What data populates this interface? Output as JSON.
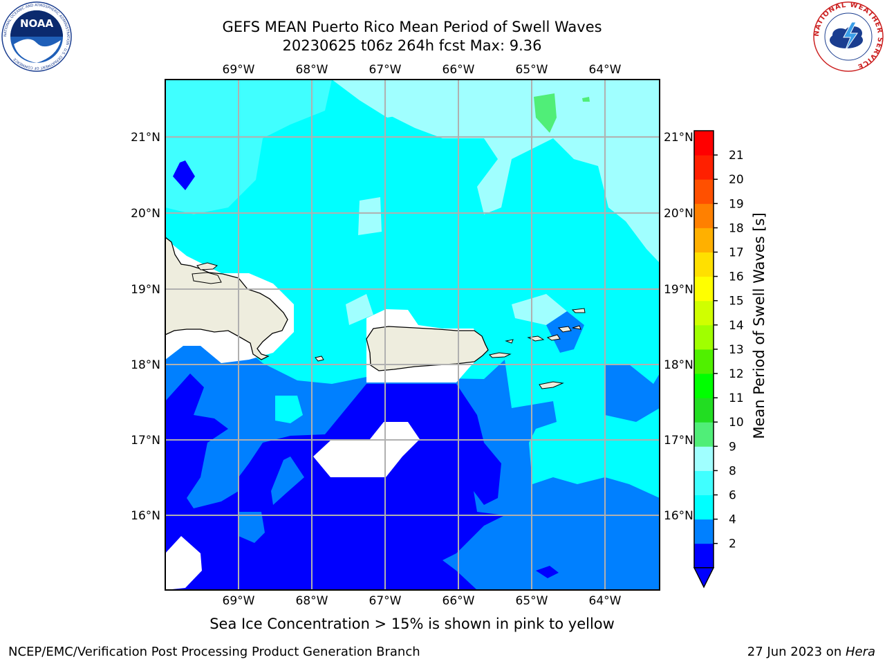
{
  "title": {
    "line1": "GEFS MEAN Puerto Rico Mean Period of Swell Waves",
    "line2": "20230625 t06z 264h fcst   Max: 9.36"
  },
  "logos": {
    "left": {
      "name": "noaa-logo",
      "text": "NOAA",
      "ring_text": "NATIONAL OCEANIC AND ATMOSPHERIC ADMINISTRATION · U.S. DEPARTMENT OF COMMERCE"
    },
    "right": {
      "name": "nws-logo",
      "ring_text": "NATIONAL WEATHER SERVICE"
    }
  },
  "map": {
    "lon_labels": [
      "69°W",
      "68°W",
      "67°W",
      "66°W",
      "65°W",
      "64°W"
    ],
    "lat_labels": [
      "21°N",
      "20°N",
      "19°N",
      "18°N",
      "17°N",
      "16°N"
    ],
    "land_color": "#eeedde",
    "gridline_color": "#b0b0b0"
  },
  "colorbar": {
    "label": "Mean Period of Swell Waves [s]",
    "ticks": [
      "2",
      "4",
      "6",
      "8",
      "9",
      "10",
      "11",
      "12",
      "13",
      "14",
      "15",
      "16",
      "17",
      "18",
      "19",
      "20",
      "21"
    ],
    "colors": [
      "#0000ff",
      "#0080ff",
      "#00ffff",
      "#40ffff",
      "#a0ffff",
      "#50ee78",
      "#22dd22",
      "#00ff00",
      "#50f000",
      "#a0ff00",
      "#d0ff00",
      "#ffff00",
      "#ffe000",
      "#ffb000",
      "#ff8000",
      "#ff5000",
      "#ff2000",
      "#ff0000"
    ],
    "extend_color": "#0000ff"
  },
  "footnote": "Sea Ice Concentration > 15% is shown in pink to yellow",
  "footer": {
    "left": "NCEP/EMC/Verification Post Processing Product Generation Branch",
    "right_prefix": "27 Jun 2023 on ",
    "right_machine": "Hera"
  }
}
